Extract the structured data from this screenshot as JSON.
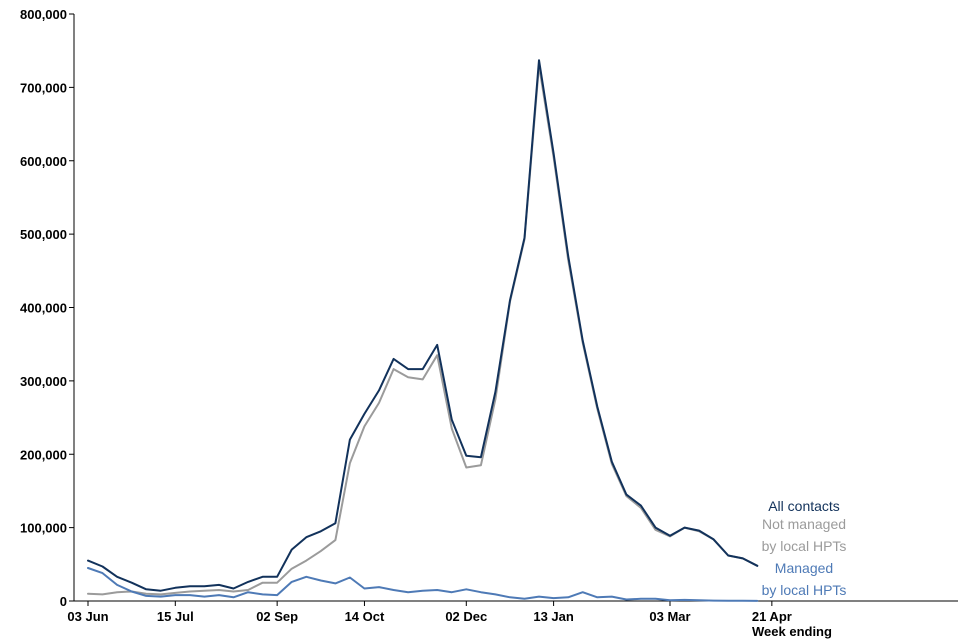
{
  "chart_data": {
    "type": "line",
    "title": "",
    "xlabel": "Week ending",
    "ylabel": "",
    "ylim": [
      0,
      800000
    ],
    "y_ticks": [
      "0",
      "100,000",
      "200,000",
      "300,000",
      "400,000",
      "500,000",
      "600,000",
      "700,000",
      "800,000"
    ],
    "y_tick_values": [
      0,
      100000,
      200000,
      300000,
      400000,
      500000,
      600000,
      700000,
      800000
    ],
    "x_ticks": [
      "03 Jun",
      "15 Jul",
      "02 Sep",
      "14 Oct",
      "02 Dec",
      "13 Jan",
      "03 Mar",
      "21 Apr"
    ],
    "x_tick_weeks": [
      0,
      6,
      13,
      19,
      26,
      32,
      40,
      47
    ],
    "grid": false,
    "legend_position": "right, at line ends",
    "series": [
      {
        "name": "All contacts",
        "legend_lines": [
          "All contacts"
        ],
        "color": "#12325b",
        "values": [
          55000,
          47000,
          33000,
          25000,
          16000,
          14000,
          18000,
          20000,
          20000,
          22000,
          17000,
          26000,
          33000,
          33000,
          70000,
          87000,
          95000,
          106000,
          220000,
          255000,
          287000,
          330000,
          316000,
          316000,
          349000,
          247000,
          198000,
          196000,
          285000,
          410000,
          495000,
          737000,
          610000,
          470000,
          355000,
          265000,
          190000,
          145000,
          130000,
          100000,
          89000,
          100000,
          96000,
          84000,
          62000,
          58000,
          48000
        ]
      },
      {
        "name": "Not managed by local HPTs",
        "legend_lines": [
          "Not managed",
          "by local HPTs"
        ],
        "color": "#9b9b9b",
        "values": [
          10000,
          9000,
          12000,
          13000,
          10000,
          9000,
          11000,
          13000,
          14000,
          15000,
          13000,
          15000,
          25000,
          25000,
          44000,
          55000,
          68000,
          83000,
          188000,
          238000,
          270000,
          316000,
          305000,
          302000,
          335000,
          235000,
          182000,
          185000,
          275000,
          408000,
          493000,
          730000,
          605000,
          465000,
          352000,
          262000,
          187000,
          143000,
          127000,
          97000,
          88000,
          100000,
          95000,
          84000,
          62000,
          58000,
          48000
        ]
      },
      {
        "name": "Managed by local HPTs",
        "legend_lines": [
          "Managed",
          "by local HPTs"
        ],
        "color": "#4e7ab6",
        "values": [
          45000,
          38000,
          22000,
          13000,
          7000,
          6000,
          8000,
          8000,
          6000,
          8000,
          5000,
          12000,
          9000,
          8000,
          26000,
          33000,
          28000,
          24000,
          32000,
          17000,
          19000,
          15000,
          12000,
          14000,
          15000,
          12000,
          16000,
          12000,
          9000,
          5000,
          3000,
          6000,
          4000,
          5000,
          12000,
          5000,
          6000,
          2000,
          3000,
          3000,
          1000,
          1500,
          1000,
          500,
          300,
          300,
          200
        ]
      }
    ]
  }
}
